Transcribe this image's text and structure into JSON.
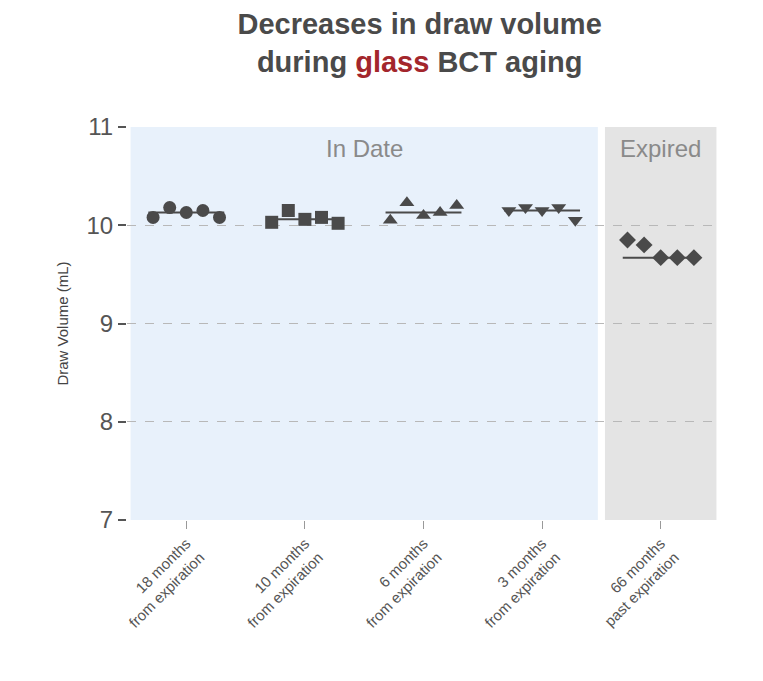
{
  "chart_data": {
    "type": "scatter",
    "title": [
      "Decreases in draw volume",
      "during glass BCT aging"
    ],
    "title_highlight": "glass",
    "y_label": "Draw Volume (mL)",
    "categories": [
      "18 months from expiration",
      "10 months from expiration",
      "6 months from expiration",
      "3 months from expiration",
      "66 months past expiration"
    ],
    "series": [
      {
        "marker": "circle",
        "values": [
          10.08,
          10.18,
          10.13,
          10.15,
          10.08
        ],
        "median": 10.13
      },
      {
        "marker": "square",
        "values": [
          10.03,
          10.15,
          10.06,
          10.08,
          10.02
        ],
        "median": 10.06
      },
      {
        "marker": "triangle-up",
        "values": [
          10.05,
          10.23,
          10.1,
          10.13,
          10.2
        ],
        "median": 10.13
      },
      {
        "marker": "triangle-down",
        "values": [
          10.15,
          10.18,
          10.15,
          10.18,
          10.05
        ],
        "median": 10.15
      },
      {
        "marker": "diamond",
        "values": [
          9.85,
          9.8,
          9.67,
          9.67,
          9.67
        ],
        "median": 9.67
      }
    ],
    "color": "#4a4a4a",
    "regions": [
      {
        "label": "In Date",
        "start": "18 months from expiration",
        "end": "3 months from expiration",
        "color": "#e8f1fb"
      },
      {
        "label": "Expired",
        "start": "66 months past expiration",
        "end": "66 months past expiration",
        "color": "#e4e4e4"
      }
    ],
    "ylim": [
      7,
      11
    ],
    "yticks": [
      7,
      8,
      9,
      10,
      11
    ],
    "grid": true
  }
}
